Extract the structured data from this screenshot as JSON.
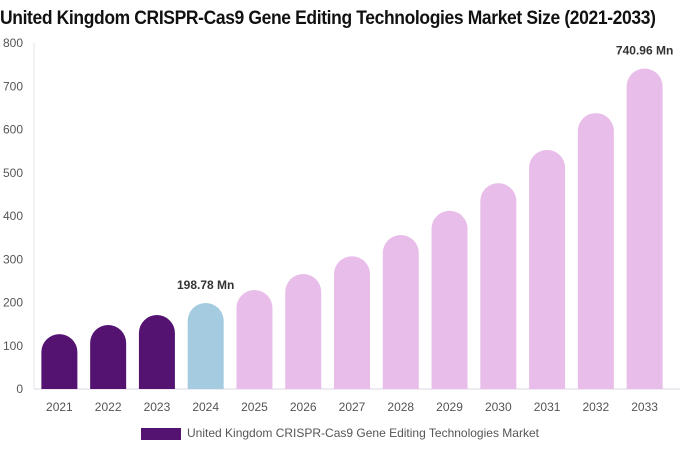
{
  "chart_data": {
    "type": "bar",
    "title": "United Kingdom CRISPR-Cas9 Gene Editing Technologies Market Size (2021-2033)",
    "categories": [
      "2021",
      "2022",
      "2023",
      "2024",
      "2025",
      "2026",
      "2027",
      "2028",
      "2029",
      "2030",
      "2031",
      "2032",
      "2033"
    ],
    "series": [
      {
        "name": "United Kingdom CRISPR-Cas9 Gene Editing Technologies Market",
        "values": [
          127,
          148,
          171,
          198.78,
          229,
          266,
          307,
          356,
          412,
          476,
          553,
          638,
          740.96
        ]
      }
    ],
    "data_labels": {
      "3": "198.78 Mn",
      "12": "740.96 Mn"
    },
    "ylim": [
      0,
      800
    ],
    "yticks": [
      0,
      100,
      200,
      300,
      400,
      500,
      600,
      700,
      800
    ],
    "legend_position": "bottom",
    "colors": {
      "historical": "#541370",
      "current": "#a4cbdf",
      "forecast": "#e8bde9"
    },
    "grid": false
  }
}
